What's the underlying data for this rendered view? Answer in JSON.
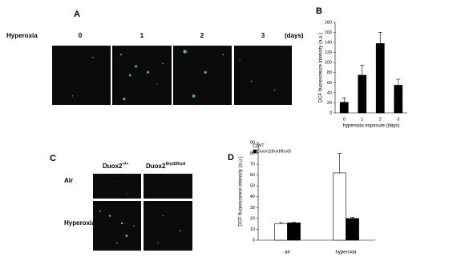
{
  "panels": {
    "A": {
      "label": "A",
      "row_label": "Hyperoxia",
      "columns": [
        "0",
        "1",
        "2",
        "3"
      ],
      "unit": "(days)"
    },
    "B": {
      "label": "B"
    },
    "C": {
      "label": "C",
      "columns": [
        {
          "base": "Duox2",
          "sup": "+/+"
        },
        {
          "base": "Duox2",
          "sup": "thyd/thyd"
        }
      ],
      "rows": [
        "Air",
        "Hyperoxia"
      ]
    },
    "D": {
      "label": "D"
    }
  },
  "chart_data": [
    {
      "type": "bar",
      "categories": [
        "0",
        "1",
        "2",
        "3"
      ],
      "values": [
        21,
        75,
        138,
        55
      ],
      "errors": [
        9,
        20,
        22,
        12
      ],
      "color": "#000000",
      "x_label": "hyperoxia exposure (days)",
      "y_label": "DCF fluorescence intensity (a.u.)",
      "ylim": [
        0,
        180
      ],
      "yticks": [
        0,
        20,
        40,
        60,
        80,
        100,
        120,
        140,
        160,
        180
      ]
    },
    {
      "type": "bar",
      "categories": [
        "air",
        "hyperoxia"
      ],
      "series": [
        {
          "name": "WT",
          "color": "#ffffff",
          "values": [
            15,
            62
          ],
          "errors": [
            1.5,
            18
          ]
        },
        {
          "name": "Duox2(thyd/thyd)",
          "color": "#000000",
          "values": [
            16,
            20
          ],
          "errors": [
            0.5,
            1
          ]
        }
      ],
      "y_label": "DCF fluorescence intensity (a.u.)",
      "ylim": [
        0,
        90
      ],
      "yticks": [
        0,
        10,
        20,
        30,
        40,
        50,
        60,
        70,
        80,
        90
      ]
    }
  ]
}
